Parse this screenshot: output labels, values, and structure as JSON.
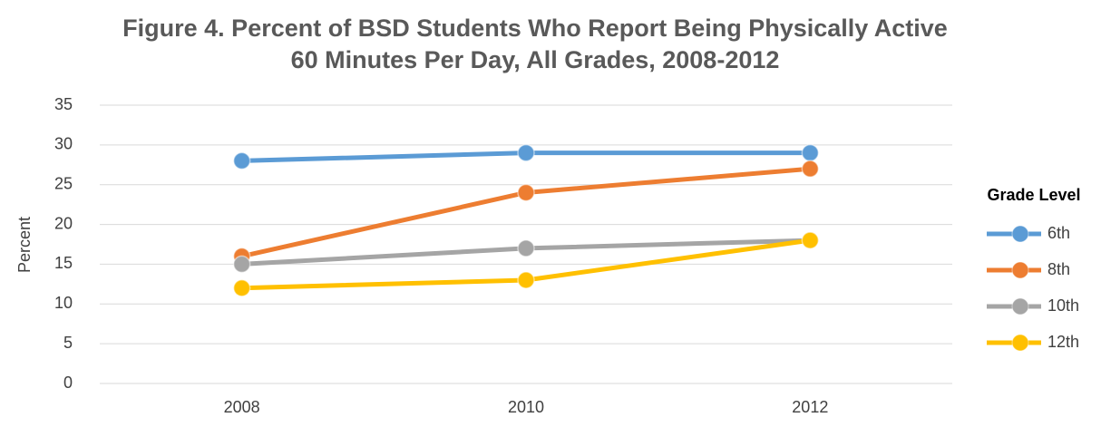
{
  "chart_data": {
    "type": "line",
    "title": "Figure 4. Percent of BSD Students Who Report Being Physically Active 60 Minutes Per Day, All Grades, 2008-2012",
    "y_label": "Percent",
    "categories": [
      "2008",
      "2010",
      "2012"
    ],
    "series": [
      {
        "name": "6th",
        "color": "#5b9bd5",
        "values": [
          28,
          29,
          29
        ]
      },
      {
        "name": "8th",
        "color": "#ed7d31",
        "values": [
          16,
          24,
          27
        ]
      },
      {
        "name": "10th",
        "color": "#a5a5a5",
        "values": [
          15,
          17,
          18
        ]
      },
      {
        "name": "12th",
        "color": "#ffc000",
        "values": [
          12,
          13,
          18
        ]
      }
    ],
    "ylim": [
      0,
      35
    ],
    "yticks": [
      0,
      5,
      10,
      15,
      20,
      25,
      30,
      35
    ],
    "grid": true,
    "legend_title": "Grade Level",
    "legend_position": "right"
  }
}
